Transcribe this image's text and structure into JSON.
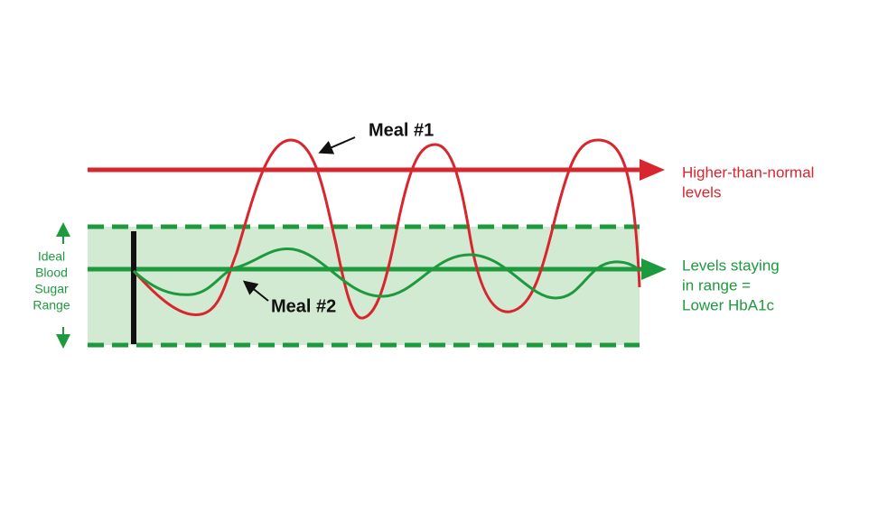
{
  "annotations": {
    "meal1": "Meal #1",
    "meal2": "Meal #2"
  },
  "high_label": [
    "Higher-than-normal",
    "levels"
  ],
  "range_label": [
    "Levels staying",
    "in range =",
    "Lower HbA1c"
  ],
  "ideal_label": [
    "Ideal",
    "Blood",
    "Sugar",
    "Range"
  ]
}
